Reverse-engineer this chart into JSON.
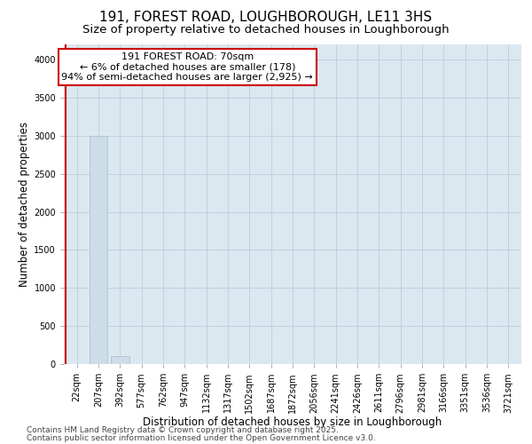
{
  "title_line1": "191, FOREST ROAD, LOUGHBOROUGH, LE11 3HS",
  "title_line2": "Size of property relative to detached houses in Loughborough",
  "xlabel": "Distribution of detached houses by size in Loughborough",
  "ylabel": "Number of detached properties",
  "categories": [
    "22sqm",
    "207sqm",
    "392sqm",
    "577sqm",
    "762sqm",
    "947sqm",
    "1132sqm",
    "1317sqm",
    "1502sqm",
    "1687sqm",
    "1872sqm",
    "2056sqm",
    "2241sqm",
    "2426sqm",
    "2611sqm",
    "2796sqm",
    "2981sqm",
    "3166sqm",
    "3351sqm",
    "3536sqm",
    "3721sqm"
  ],
  "values": [
    0,
    3000,
    110,
    5,
    3,
    2,
    1,
    1,
    1,
    1,
    1,
    1,
    1,
    1,
    1,
    1,
    1,
    1,
    1,
    1,
    1
  ],
  "bar_color": "#ccdce8",
  "bar_edge_color": "#aabccc",
  "annotation_text": "191 FOREST ROAD: 70sqm\n← 6% of detached houses are smaller (178)\n94% of semi-detached houses are larger (2,925) →",
  "annotation_box_color": "#ffffff",
  "annotation_box_edge": "#cc0000",
  "vline_color": "#cc0000",
  "vline_x": 0,
  "ylim": [
    0,
    4200
  ],
  "yticks": [
    0,
    500,
    1000,
    1500,
    2000,
    2500,
    3000,
    3500,
    4000
  ],
  "background_color": "#dce8f0",
  "footer_line1": "Contains HM Land Registry data © Crown copyright and database right 2025.",
  "footer_line2": "Contains public sector information licensed under the Open Government Licence v3.0.",
  "title_fontsize": 11,
  "subtitle_fontsize": 9.5,
  "axis_label_fontsize": 8.5,
  "tick_fontsize": 7,
  "annotation_fontsize": 8,
  "footer_fontsize": 6.5
}
